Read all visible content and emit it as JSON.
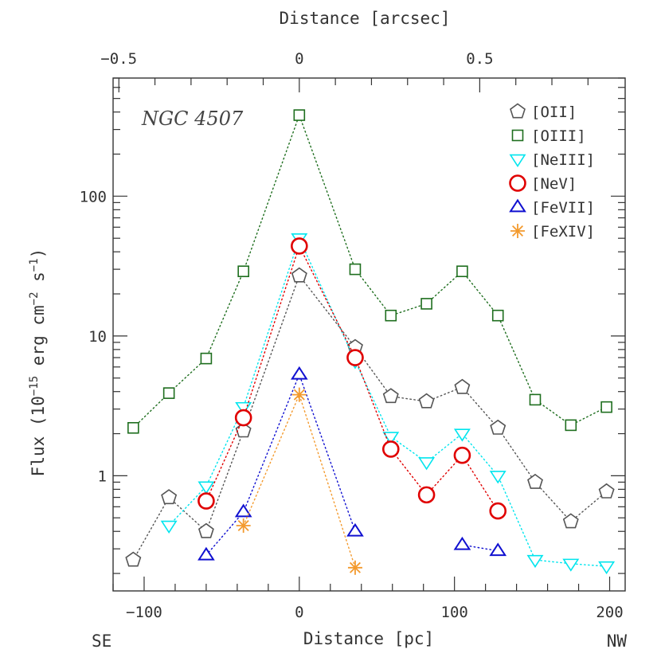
{
  "chart_data": {
    "type": "scatter",
    "annotation": "NGC 4507",
    "xlabel": "Distance [pc]",
    "x2label": "Distance [arcsec]",
    "ylabel": "Flux (10^-15 erg cm^-2 s^-1)",
    "ylabel_parts": {
      "prefix": "Flux (10",
      "exp1": "−15",
      "mid": " erg cm",
      "exp2": "−2",
      "mid2": " s",
      "exp3": "−1",
      "suffix": ")"
    },
    "direction_left": "SE",
    "direction_right": "NW",
    "xlim": [
      -120,
      210
    ],
    "ylim": [
      0.15,
      700
    ],
    "yscale": "log",
    "x_ticks": [
      -100,
      0,
      100,
      200
    ],
    "x_tick_labels": [
      "−100",
      "0",
      "100",
      "200"
    ],
    "x2_ticks": [
      -0.5,
      0,
      0.5
    ],
    "x2_tick_labels": [
      "−0.5",
      "0",
      "0.5"
    ],
    "y_ticks": [
      1,
      10,
      100
    ],
    "y_tick_labels": [
      "1",
      "10",
      "100"
    ],
    "legend_position": "top-right",
    "series": [
      {
        "name": "[OII]",
        "marker": "pentagon",
        "color": "#555555",
        "points": [
          [
            -107,
            0.25
          ],
          [
            -84,
            0.7
          ],
          [
            -60,
            0.4
          ],
          [
            -36,
            2.1
          ],
          [
            0,
            27
          ],
          [
            36,
            8.3
          ],
          [
            59,
            3.7
          ],
          [
            82,
            3.4
          ],
          [
            105,
            4.3
          ],
          [
            128,
            2.2
          ],
          [
            152,
            0.9
          ],
          [
            175,
            0.47
          ],
          [
            198,
            0.77
          ]
        ]
      },
      {
        "name": "[OIII]",
        "marker": "square",
        "color": "#1e6e1e",
        "points": [
          [
            -107,
            2.2
          ],
          [
            -84,
            3.9
          ],
          [
            -60,
            6.9
          ],
          [
            -36,
            29
          ],
          [
            0,
            380
          ],
          [
            36,
            30
          ],
          [
            59,
            14
          ],
          [
            82,
            17
          ],
          [
            105,
            29
          ],
          [
            128,
            14
          ],
          [
            152,
            3.5
          ],
          [
            175,
            2.3
          ],
          [
            198,
            3.1
          ]
        ]
      },
      {
        "name": "[NeIII]",
        "marker": "triangle-down",
        "color": "#00e5ee",
        "points": [
          [
            -84,
            0.44
          ],
          [
            -60,
            0.84
          ],
          [
            -36,
            3.1
          ],
          [
            0,
            50
          ],
          [
            36,
            6.6
          ],
          [
            59,
            1.9
          ],
          [
            82,
            1.25
          ],
          [
            105,
            2.0
          ],
          [
            128,
            1.0
          ],
          [
            152,
            0.25
          ],
          [
            175,
            0.235
          ],
          [
            198,
            0.225
          ]
        ]
      },
      {
        "name": "[NeV]",
        "marker": "circle",
        "color": "#e00000",
        "points": [
          [
            -60,
            0.66
          ],
          [
            -36,
            2.6
          ],
          [
            0,
            44
          ],
          [
            36,
            7.0
          ],
          [
            59,
            1.55
          ],
          [
            82,
            0.73
          ],
          [
            105,
            1.4
          ],
          [
            128,
            0.56
          ]
        ]
      },
      {
        "name": "[FeVII]",
        "marker": "triangle-up",
        "color": "#1010d0",
        "points": [
          [
            -60,
            0.27
          ],
          [
            -36,
            0.55
          ],
          [
            0,
            5.3
          ],
          [
            36,
            0.4
          ]
        ],
        "points2": [
          [
            105,
            0.32
          ],
          [
            128,
            0.29
          ]
        ]
      },
      {
        "name": "[FeXIV]",
        "marker": "asterisk",
        "color": "#f39a2e",
        "points": [
          [
            -36,
            0.44
          ],
          [
            0,
            3.8
          ],
          [
            36,
            0.22
          ]
        ]
      }
    ]
  }
}
